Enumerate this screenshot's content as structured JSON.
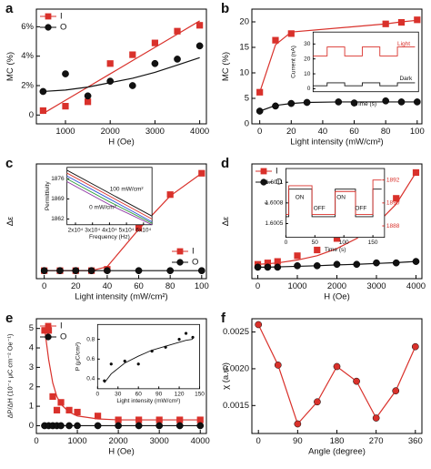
{
  "chart_data": [
    {
      "type": "scatter",
      "label": "a",
      "xlabel": "H (Oe)",
      "ylabel": "MC (%)",
      "xlim": [
        350,
        4150
      ],
      "ylim": [
        -0.6,
        7.2
      ],
      "xticks": [
        1000,
        2000,
        3000,
        4000
      ],
      "yticks": [
        0,
        {
          "value": 2,
          "label": "2%"
        },
        {
          "value": 4,
          "label": "4%"
        },
        {
          "value": 6,
          "label": "6%"
        }
      ],
      "legend": "upper left",
      "series": [
        {
          "name": "I",
          "color": "#d9312b",
          "marker": "square",
          "x": [
            500,
            1000,
            1500,
            2000,
            2500,
            3000,
            3500,
            4000
          ],
          "values": [
            0.3,
            0.6,
            0.9,
            3.5,
            4.1,
            4.9,
            5.7,
            6.1
          ],
          "fit": [
            0.1,
            1.0,
            1.9,
            2.8,
            3.7,
            4.6,
            5.5,
            6.4
          ]
        },
        {
          "name": "O",
          "color": "#111111",
          "marker": "circle",
          "x": [
            500,
            1000,
            1500,
            2000,
            2500,
            3000,
            3500,
            4000
          ],
          "values": [
            1.6,
            2.8,
            1.3,
            2.3,
            2.0,
            3.5,
            3.8,
            4.7
          ],
          "fit": [
            1.6,
            1.7,
            1.9,
            2.2,
            2.5,
            2.9,
            3.4,
            3.9
          ]
        }
      ]
    },
    {
      "type": "scatter",
      "label": "b",
      "xlabel": "Light intensity (mW/cm²)",
      "ylabel": "MC (%)",
      "xlim": [
        -5,
        103
      ],
      "ylim": [
        0,
        22.5
      ],
      "xticks": [
        0,
        20,
        40,
        60,
        80,
        100
      ],
      "yticks": [
        0,
        5,
        10,
        15,
        20
      ],
      "series": [
        {
          "name": "I",
          "color": "#d9312b",
          "marker": "square",
          "x": [
            0,
            10,
            20,
            80,
            90,
            100
          ],
          "values": [
            6.2,
            16.4,
            17.7,
            19.6,
            19.9,
            20.4
          ],
          "fit": [
            6.2,
            15.5,
            18.0,
            19.6,
            20.0,
            20.3
          ]
        },
        {
          "name": "O",
          "color": "#111111",
          "marker": "circle",
          "x": [
            0,
            10,
            20,
            30,
            50,
            60,
            80,
            90,
            100
          ],
          "values": [
            2.5,
            3.5,
            4.0,
            4.2,
            4.3,
            4.1,
            4.5,
            4.3,
            4.3
          ],
          "fit": [
            2.5,
            3.6,
            4.0,
            4.2,
            4.3,
            4.3,
            4.3,
            4.3,
            4.3
          ]
        }
      ],
      "inset": {
        "type": "line",
        "xlabel": "Time (s)",
        "ylabel": "Current (nA)",
        "xlim": [
          0,
          60
        ],
        "ylim": [
          -2,
          38
        ],
        "yticks": [
          0,
          10,
          20,
          30
        ],
        "annotations": [
          "Light",
          "Dark"
        ],
        "series": [
          {
            "color": "#d9312b",
            "x": [
              0,
              8,
              8,
              18,
              18,
              28,
              28,
              38,
              38,
              48,
              48,
              58
            ],
            "values": [
              22,
              22,
              28,
              28,
              22,
              22,
              28,
              28,
              22,
              22,
              28,
              28
            ]
          },
          {
            "color": "#111111",
            "x": [
              0,
              8,
              8,
              18,
              18,
              28,
              28,
              38,
              38,
              48,
              48,
              58
            ],
            "values": [
              2,
              2,
              4,
              4,
              2,
              2,
              4,
              4,
              2,
              2,
              4,
              4
            ]
          }
        ]
      }
    },
    {
      "type": "scatter",
      "label": "c",
      "xlabel": "Light intensity (mW/cm²)",
      "ylabel": "Δε",
      "xlim": [
        -5,
        103
      ],
      "ylim": [
        -0.6,
        8
      ],
      "xticks": [
        0,
        20,
        40,
        60,
        80,
        100
      ],
      "legend": "lower right",
      "series": [
        {
          "name": "I",
          "color": "#d9312b",
          "marker": "square",
          "x": [
            0,
            10,
            20,
            30,
            40,
            60,
            80,
            100
          ],
          "values": [
            0,
            0,
            0,
            0,
            0.1,
            3.2,
            5.7,
            7.3
          ],
          "fit": [
            0,
            0,
            0,
            0,
            0.3,
            3.1,
            5.6,
            7.3
          ]
        },
        {
          "name": "O",
          "color": "#111111",
          "marker": "circle",
          "x": [
            0,
            10,
            20,
            30,
            40,
            60,
            80,
            100
          ],
          "values": [
            0,
            0,
            0,
            0,
            0,
            0,
            0,
            0
          ],
          "fit": [
            0,
            0,
            0,
            0,
            0,
            0,
            0,
            0
          ]
        }
      ],
      "inset": {
        "type": "line",
        "xlabel": "Frequency (Hz)",
        "ylabel": "Permittivity",
        "xlim": [
          15000,
          65000
        ],
        "ylim": [
          1860,
          1880
        ],
        "xticks": [
          {
            "value": 20000,
            "label": "2x10⁴"
          },
          {
            "value": 30000,
            "label": "3x10⁴"
          },
          {
            "value": 40000,
            "label": "4x10⁴"
          },
          {
            "value": 50000,
            "label": "5x10⁴"
          },
          {
            "value": 60000,
            "label": "6x10⁴"
          }
        ],
        "yticks": [
          1862,
          1869,
          1876
        ],
        "annotations": [
          "100 mW/cm²",
          "0 mW/cm²"
        ],
        "series": [
          {
            "color": "#111111",
            "x": [
              15000,
              40000,
              65000
            ],
            "values": [
              1879,
              1871,
              1863
            ]
          },
          {
            "color": "#d9312b",
            "x": [
              15000,
              40000,
              65000
            ],
            "values": [
              1878,
              1870,
              1862
            ]
          },
          {
            "color": "#2a4fd6",
            "x": [
              15000,
              40000,
              65000
            ],
            "values": [
              1877,
              1869,
              1861
            ]
          },
          {
            "color": "#2e9c3a",
            "x": [
              15000,
              40000,
              65000
            ],
            "values": [
              1876,
              1868,
              1860.5
            ]
          },
          {
            "color": "#8a2ea0",
            "x": [
              15000,
              40000,
              65000
            ],
            "values": [
              1875,
              1867,
              1860
            ]
          }
        ]
      }
    },
    {
      "type": "scatter",
      "label": "d",
      "xlabel": "H (Oe)",
      "ylabel": "Δε",
      "xlim": [
        -150,
        4150
      ],
      "ylim": [
        -0.2,
        3.8
      ],
      "xticks": [
        0,
        1000,
        2000,
        3000,
        4000
      ],
      "legend": "upper left",
      "series": [
        {
          "name": "I",
          "color": "#d9312b",
          "marker": "square",
          "x": [
            0,
            250,
            500,
            1000,
            1500,
            2000,
            2500,
            3000,
            3500,
            4000
          ],
          "values": [
            0.3,
            0.35,
            0.4,
            0.6,
            0.8,
            1.2,
            1.5,
            2.0,
            2.6,
            3.5
          ],
          "fit": [
            0.3,
            0.32,
            0.35,
            0.45,
            0.6,
            0.85,
            1.2,
            1.7,
            2.4,
            3.5
          ]
        },
        {
          "name": "O",
          "color": "#111111",
          "marker": "circle",
          "x": [
            0,
            250,
            500,
            1000,
            1500,
            2000,
            2500,
            3000,
            3500,
            4000
          ],
          "values": [
            0.2,
            0.2,
            0.2,
            0.25,
            0.25,
            0.3,
            0.3,
            0.35,
            0.35,
            0.4
          ],
          "fit": [
            0.2,
            0.2,
            0.21,
            0.23,
            0.25,
            0.28,
            0.3,
            0.33,
            0.36,
            0.4
          ]
        }
      ],
      "inset": {
        "type": "line",
        "xlabel": "Time (s)",
        "ylabel": "ε",
        "xlim": [
          0,
          170
        ],
        "ylim": [
          1.6003,
          1.6013
        ],
        "y2lim": [
          1887,
          1893
        ],
        "xticks": [
          0,
          50,
          100,
          150
        ],
        "yticks": [
          1.6005,
          1.6008,
          1.6011
        ],
        "y2ticks": [
          1888,
          1890,
          1892
        ],
        "y2color": "#d9312b",
        "annotations": [
          "ON",
          "OFF",
          "ON",
          "OFF"
        ],
        "series": [
          {
            "color": "#111111",
            "x": [
              0,
              5,
              5,
              45,
              45,
              85,
              85,
              120,
              120,
              150,
              150,
              165
            ],
            "values": [
              1.6006,
              1.6006,
              1.601,
              1.601,
              1.6006,
              1.6006,
              1.601,
              1.601,
              1.6006,
              1.6006,
              1.601,
              1.601
            ]
          },
          {
            "color": "#d9312b",
            "axis": "y2",
            "x": [
              0,
              5,
              5,
              45,
              45,
              85,
              85,
              120,
              120,
              150,
              150,
              165
            ],
            "values": [
              1889,
              1889,
              1891.5,
              1891.5,
              1889,
              1889,
              1891,
              1891,
              1889,
              1889,
              1892,
              1892
            ]
          }
        ]
      }
    },
    {
      "type": "scatter",
      "label": "e",
      "xlabel": "H (Oe)",
      "ylabel": "ΔP/ΔH (10⁻⁴ μC cm⁻² Oe⁻¹)",
      "xlim": [
        0,
        4150
      ],
      "ylim": [
        -0.4,
        5.5
      ],
      "xticks": [
        0,
        1000,
        2000,
        3000,
        4000
      ],
      "yticks": [
        0,
        1,
        2,
        3,
        4,
        5
      ],
      "legend": "upper left",
      "series": [
        {
          "name": "I",
          "color": "#d9312b",
          "marker": "square",
          "x": [
            200,
            300,
            400,
            500,
            600,
            800,
            1000,
            1500,
            2000,
            2500,
            3000,
            3500,
            4000
          ],
          "values": [
            4.9,
            4.9,
            1.5,
            0.8,
            1.2,
            0.8,
            0.7,
            0.5,
            0.3,
            0.3,
            0.3,
            0.3,
            0.3
          ],
          "fit": [
            5.0,
            3.4,
            2.2,
            1.5,
            1.1,
            0.7,
            0.5,
            0.35,
            0.3,
            0.3,
            0.3,
            0.3,
            0.3
          ]
        },
        {
          "name": "O",
          "color": "#111111",
          "marker": "circle",
          "x": [
            200,
            300,
            400,
            500,
            600,
            800,
            1000,
            1500,
            2000,
            2500,
            3000,
            3500,
            4000
          ],
          "values": [
            0,
            0,
            0,
            0,
            0,
            0,
            0,
            0,
            0,
            0,
            0,
            0,
            0
          ],
          "fit": [
            0,
            0,
            0,
            0,
            0,
            0,
            0,
            0,
            0,
            0,
            0,
            0,
            0
          ]
        }
      ],
      "inset": {
        "type": "scatter",
        "xlabel": "Light intensity (mW/cm²)",
        "ylabel": "P (μC/cm²)",
        "xlim": [
          0,
          150
        ],
        "ylim": [
          0.3,
          0.95
        ],
        "xticks": [
          0,
          30,
          60,
          90,
          120,
          150
        ],
        "yticks": [
          0.4,
          0.6,
          0.8
        ],
        "series": [
          {
            "color": "#111111",
            "marker": "dot",
            "x": [
              10,
              20,
              40,
              60,
              80,
              100,
              120,
              130,
              140
            ],
            "values": [
              0.38,
              0.55,
              0.58,
              0.55,
              0.68,
              0.72,
              0.8,
              0.86,
              0.82
            ],
            "fit": [
              0.36,
              0.45,
              0.56,
              0.63,
              0.69,
              0.73,
              0.77,
              0.79,
              0.8
            ]
          }
        ]
      }
    },
    {
      "type": "line",
      "label": "f",
      "xlabel": "Angle (degree)",
      "ylabel": "χ (a.u.)",
      "xlim": [
        -15,
        375
      ],
      "ylim": [
        0.00112,
        0.00268
      ],
      "xticks": [
        0,
        90,
        180,
        270,
        360
      ],
      "yticks": [
        0.0015,
        {
          "value": 0.002,
          "label": "0.0020"
        },
        0.0025
      ],
      "series": [
        {
          "color": "#d9312b",
          "marker": "circle",
          "x": [
            0,
            45,
            90,
            135,
            180,
            225,
            270,
            315,
            360
          ],
          "values": [
            0.0026,
            0.00205,
            0.00125,
            0.00155,
            0.00203,
            0.00183,
            0.00133,
            0.0017,
            0.0023
          ]
        }
      ]
    }
  ]
}
